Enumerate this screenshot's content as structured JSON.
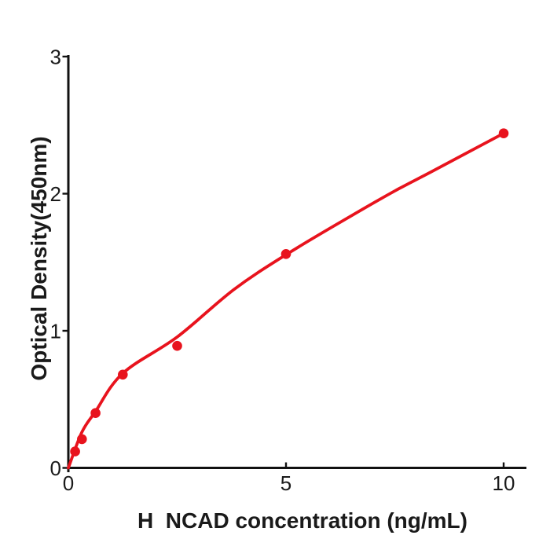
{
  "chart_data": {
    "type": "scatter",
    "title": "",
    "xlabel": "H  NCAD concentration (ng/mL)",
    "ylabel": "Optical Density(450nm)",
    "x": [
      0.156,
      0.3125,
      0.625,
      1.25,
      2.5,
      5,
      10
    ],
    "y": [
      0.12,
      0.21,
      0.4,
      0.68,
      0.89,
      1.56,
      2.44
    ],
    "xlim": [
      0,
      10.5
    ],
    "ylim": [
      0,
      3
    ],
    "x_ticks": [
      0,
      5,
      10
    ],
    "y_ticks": [
      0,
      1,
      2,
      3
    ],
    "grid": false,
    "legend": "none",
    "point_color": "#e8131d",
    "curve_color": "#e8131d",
    "axis_color": "#111111",
    "text_color": "#1a1a1a",
    "fit_curve": [
      [
        0,
        0
      ],
      [
        0.31,
        0.26
      ],
      [
        0.62,
        0.41
      ],
      [
        1.25,
        0.69
      ],
      [
        2.5,
        0.955
      ],
      [
        3.8,
        1.3
      ],
      [
        5,
        1.555
      ],
      [
        6.4,
        1.82
      ],
      [
        7.5,
        2.02
      ],
      [
        8.4,
        2.17
      ],
      [
        10,
        2.44
      ]
    ]
  }
}
